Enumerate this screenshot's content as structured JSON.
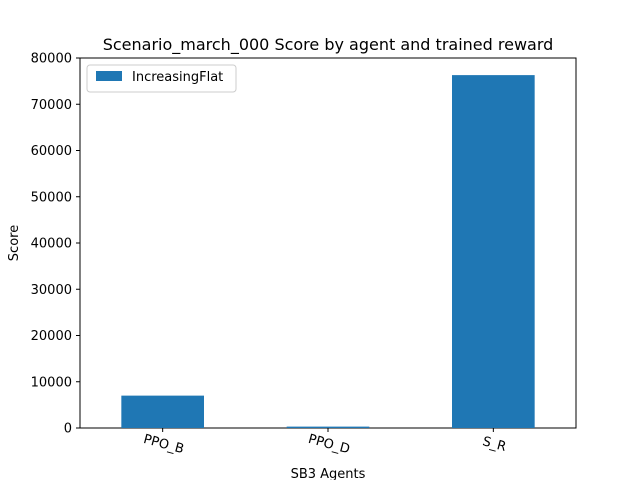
{
  "chart_data": {
    "type": "bar",
    "title": "Scenario_march_000 Score by agent and trained reward",
    "xlabel": "SB3 Agents",
    "ylabel": "Score",
    "categories": [
      "PPO_B",
      "PPO_D",
      "S_R"
    ],
    "series": [
      {
        "name": "IncreasingFlat",
        "values": [
          7000,
          300,
          76300
        ]
      }
    ],
    "ylim": [
      0,
      80000
    ],
    "yticks": [
      0,
      10000,
      20000,
      30000,
      40000,
      50000,
      60000,
      70000,
      80000
    ],
    "legend_position": "top-left",
    "grid": false,
    "bar_color": "#1f77b4"
  }
}
